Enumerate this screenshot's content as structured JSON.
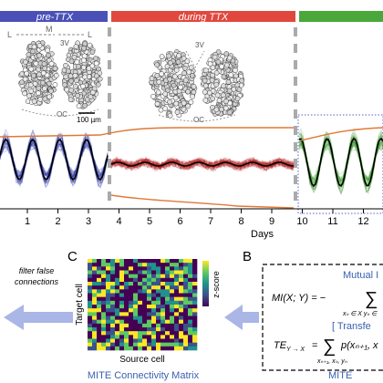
{
  "phases": {
    "pre": {
      "label": "pre-TTX",
      "color": "#4a50b8"
    },
    "during": {
      "label": "during TTX",
      "color": "#e0483e"
    },
    "post": {
      "label": "",
      "color": "#4aa83a"
    }
  },
  "anatomy": {
    "orientation_left_l": "L",
    "orientation_m": "M",
    "orientation_right_l": "L",
    "third_ventricle_1": "3V",
    "third_ventricle_2": "3V",
    "optic_chiasm_1": "OC",
    "optic_chiasm_2": "OC",
    "scale_bar": "100 µm"
  },
  "timeline": {
    "xlabel": "Days",
    "ticks": [
      "1",
      "2",
      "3",
      "4",
      "5",
      "6",
      "7",
      "8",
      "9",
      "10",
      "11",
      "12"
    ],
    "trace_colors": {
      "pre": "#1f2a9c",
      "during": "#b01d1d",
      "post": "#2e8f1f"
    },
    "aux_line_color": "#e07838"
  },
  "panel_c": {
    "letter": "C",
    "ylabel": "Target cell",
    "xlabel": "Source cell",
    "colorbar_label": "z-score",
    "title": "MITE Connectivity Matrix",
    "colors": [
      "#440154",
      "#3b528b",
      "#21918c",
      "#5ec962",
      "#fde725"
    ]
  },
  "filter_note": {
    "line1": "filter false",
    "line2": "connections"
  },
  "panel_b": {
    "letter": "B",
    "mutual_title": "Mutual I",
    "mi_formula": "MI(X; Y) = −",
    "mi_sum_sub": "xₙ ∈ X yₙ ∈",
    "transfer_title": "[ Transfe",
    "te_formula": "TE",
    "te_sub": "Y → X",
    "te_rhs": "=",
    "te_sum_sub": "xₙ₊₁, xₙ, yₙ",
    "te_term": "p(xₙ₊₁, x",
    "footer": "MITE"
  }
}
